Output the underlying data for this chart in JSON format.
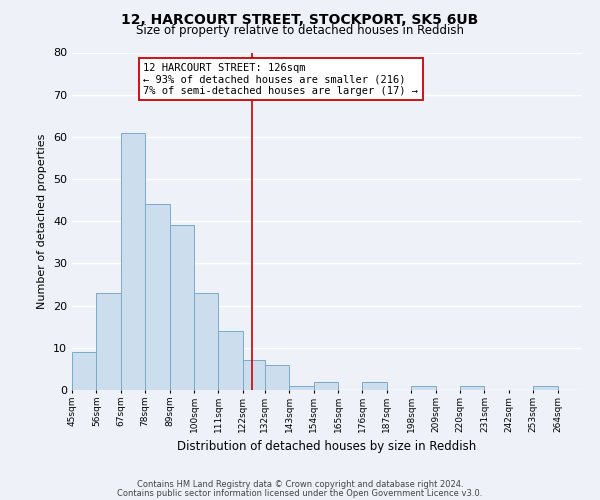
{
  "title": "12, HARCOURT STREET, STOCKPORT, SK5 6UB",
  "subtitle": "Size of property relative to detached houses in Reddish",
  "xlabel": "Distribution of detached houses by size in Reddish",
  "ylabel": "Number of detached properties",
  "bar_color": "#ccdded",
  "bar_edge_color": "#7aaac8",
  "background_color": "#eef2f8",
  "grid_color": "#ffffff",
  "bin_labels": [
    "45sqm",
    "56sqm",
    "67sqm",
    "78sqm",
    "89sqm",
    "100sqm",
    "111sqm",
    "122sqm",
    "132sqm",
    "143sqm",
    "154sqm",
    "165sqm",
    "176sqm",
    "187sqm",
    "198sqm",
    "209sqm",
    "220sqm",
    "231sqm",
    "242sqm",
    "253sqm",
    "264sqm"
  ],
  "bin_edges": [
    45,
    56,
    67,
    78,
    89,
    100,
    111,
    122,
    132,
    143,
    154,
    165,
    176,
    187,
    198,
    209,
    220,
    231,
    242,
    253,
    264,
    275
  ],
  "bar_heights": [
    9,
    23,
    61,
    44,
    39,
    23,
    14,
    7,
    6,
    1,
    2,
    0,
    2,
    0,
    1,
    0,
    1,
    0,
    0,
    1,
    0
  ],
  "vline_x": 126,
  "vline_color": "#cc0000",
  "annotation_title": "12 HARCOURT STREET: 126sqm",
  "annotation_line1": "← 93% of detached houses are smaller (216)",
  "annotation_line2": "7% of semi-detached houses are larger (17) →",
  "annotation_box_color": "#ffffff",
  "annotation_box_edge": "#cc0000",
  "ylim": [
    0,
    80
  ],
  "yticks": [
    0,
    10,
    20,
    30,
    40,
    50,
    60,
    70,
    80
  ],
  "footer1": "Contains HM Land Registry data © Crown copyright and database right 2024.",
  "footer2": "Contains public sector information licensed under the Open Government Licence v3.0."
}
